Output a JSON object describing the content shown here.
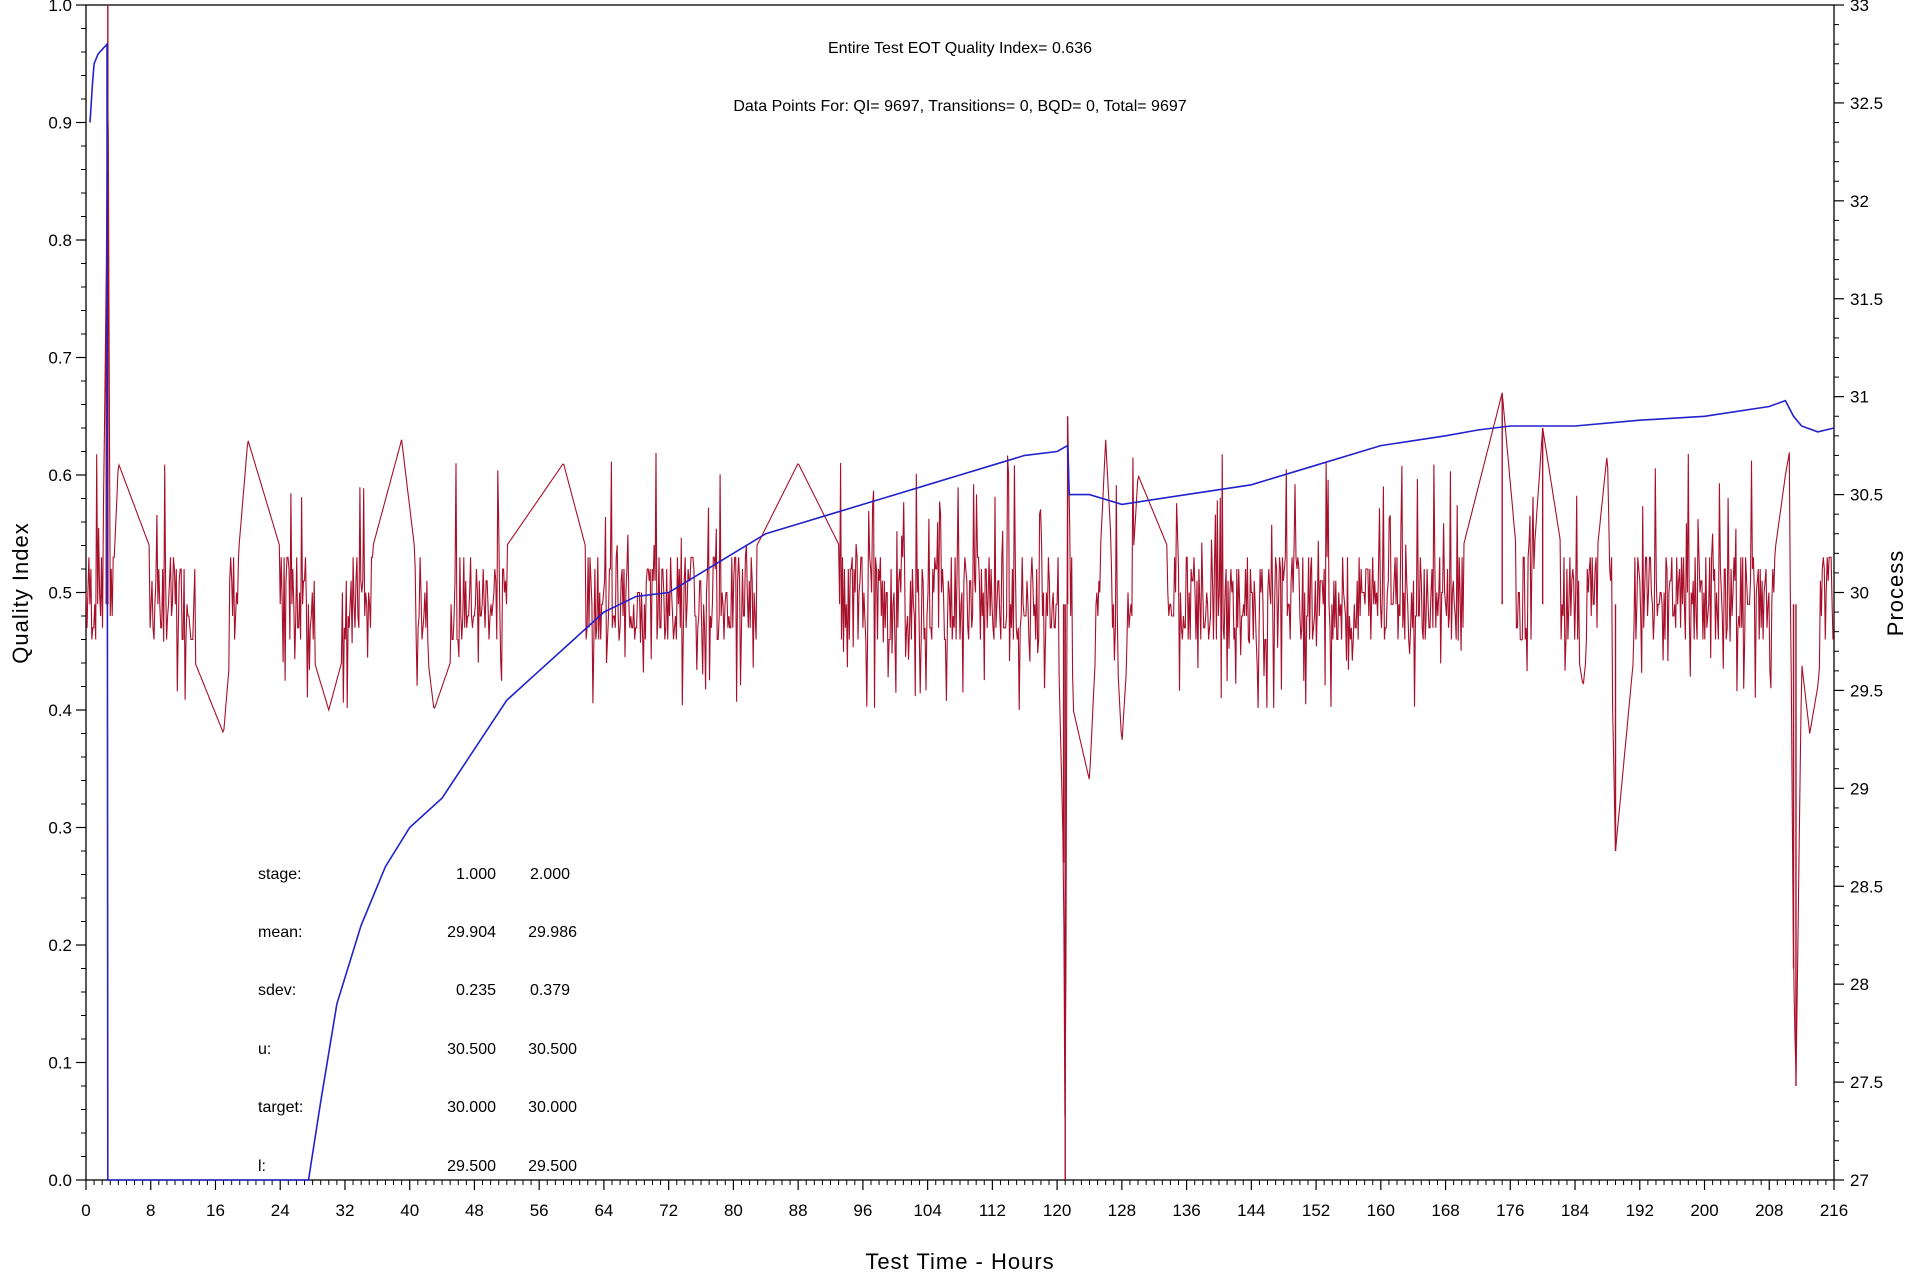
{
  "chart_data": {
    "type": "line",
    "header": {
      "line1": "Entire Test EOT Quality Index=   0.636",
      "line2": "Data Points For: QI=  9697, Transitions=     0, BQD=     0, Total=  9697"
    },
    "xlabel": "Test Time - Hours",
    "ylabel_left": "Quality Index",
    "ylabel_right": "Process",
    "xlim": [
      0,
      216
    ],
    "ylim_left": [
      0,
      1
    ],
    "ylim_right": [
      27,
      33
    ],
    "x_ticks": [
      "0",
      "8",
      "16",
      "24",
      "32",
      "40",
      "48",
      "56",
      "64",
      "72",
      "80",
      "88",
      "96",
      "104",
      "112",
      "120",
      "128",
      "136",
      "144",
      "152",
      "160",
      "168",
      "176",
      "184",
      "192",
      "200",
      "208",
      "216"
    ],
    "y_left_ticks": [
      "0.0",
      "0.1",
      "0.2",
      "0.3",
      "0.4",
      "0.5",
      "0.6",
      "0.7",
      "0.8",
      "0.9",
      "1.0"
    ],
    "y_right_ticks": [
      "27",
      "27.5",
      "28",
      "28.5",
      "29",
      "29.5",
      "30",
      "30.5",
      "31",
      "31.5",
      "32",
      "32.5",
      "33"
    ],
    "grid": false,
    "colors": {
      "quality_index": "#a80f2a",
      "process": "#2222cc"
    },
    "series": [
      {
        "axis": "left",
        "summary": "Quality Index oscillates about 0.48-0.50 between roughly 0.40 and 0.64 for the whole test; spike to 1.0 near 2.7 h, dips to 0.0 near 121 h, excursions 0.35-0.65 around 122-130 h, dip to 0.28 near 189 h, rise to 0.62 near 210-211 h then drop to 0.08 near 211.5 h.",
        "points": [
          [
            0,
            0.5
          ],
          [
            2.0,
            0.49
          ],
          [
            2.5,
            0.76
          ],
          [
            2.7,
            1.0
          ],
          [
            3.0,
            0.45
          ],
          [
            4.0,
            0.61
          ],
          [
            10,
            0.5
          ],
          [
            17,
            0.38
          ],
          [
            20,
            0.63
          ],
          [
            30,
            0.4
          ],
          [
            39,
            0.63
          ],
          [
            43,
            0.4
          ],
          [
            48,
            0.5
          ],
          [
            59,
            0.61
          ],
          [
            64,
            0.48
          ],
          [
            72,
            0.46
          ],
          [
            80,
            0.5
          ],
          [
            88,
            0.61
          ],
          [
            96,
            0.5
          ],
          [
            104,
            0.5
          ],
          [
            112,
            0.5
          ],
          [
            120,
            0.5
          ],
          [
            120.8,
            0.27
          ],
          [
            121,
            0.0
          ],
          [
            121.3,
            0.65
          ],
          [
            122,
            0.4
          ],
          [
            124,
            0.34
          ],
          [
            126,
            0.63
          ],
          [
            128,
            0.37
          ],
          [
            130,
            0.6
          ],
          [
            136,
            0.5
          ],
          [
            144,
            0.52
          ],
          [
            152,
            0.46
          ],
          [
            160,
            0.52
          ],
          [
            168,
            0.48
          ],
          [
            175,
            0.67
          ],
          [
            178,
            0.44
          ],
          [
            180,
            0.64
          ],
          [
            185,
            0.42
          ],
          [
            188,
            0.62
          ],
          [
            189,
            0.28
          ],
          [
            192,
            0.5
          ],
          [
            200,
            0.52
          ],
          [
            208,
            0.5
          ],
          [
            210,
            0.6
          ],
          [
            210.5,
            0.62
          ],
          [
            211,
            0.18
          ],
          [
            211.3,
            0.08
          ],
          [
            212,
            0.44
          ],
          [
            213,
            0.38
          ],
          [
            214,
            0.42
          ],
          [
            215,
            0.5
          ],
          [
            216,
            0.48
          ]
        ]
      },
      {
        "axis": "right",
        "summary": "Process value rises from ~27 at 27.5 h through ~29.5 at 55 h, ~30 at 75 h, ~30.7 at 121 h, steps down to 30.4 at 121.5 h, then climbs to ~30.9 at 210 h and falls to ~30.8 at 216 h. Early segment near 0-3 h sits at 32.4-32.8 with a drop to 27 at 2.7 h.",
        "points": [
          [
            0.5,
            32.4
          ],
          [
            0.8,
            32.6
          ],
          [
            1.0,
            32.7
          ],
          [
            1.5,
            32.75
          ],
          [
            2.6,
            32.8
          ],
          [
            2.7,
            27.0
          ],
          [
            27.5,
            27.0
          ],
          [
            29,
            27.4
          ],
          [
            31,
            27.9
          ],
          [
            34,
            28.3
          ],
          [
            37,
            28.6
          ],
          [
            40,
            28.8
          ],
          [
            44,
            28.95
          ],
          [
            48,
            29.2
          ],
          [
            52,
            29.45
          ],
          [
            56,
            29.6
          ],
          [
            60,
            29.75
          ],
          [
            64,
            29.9
          ],
          [
            68,
            29.98
          ],
          [
            72,
            30.0
          ],
          [
            76,
            30.1
          ],
          [
            80,
            30.2
          ],
          [
            84,
            30.3
          ],
          [
            88,
            30.35
          ],
          [
            92,
            30.4
          ],
          [
            96,
            30.45
          ],
          [
            100,
            30.5
          ],
          [
            104,
            30.55
          ],
          [
            108,
            30.6
          ],
          [
            112,
            30.65
          ],
          [
            116,
            30.7
          ],
          [
            120,
            30.72
          ],
          [
            121.3,
            30.75
          ],
          [
            121.5,
            30.5
          ],
          [
            124,
            30.5
          ],
          [
            128,
            30.45
          ],
          [
            136,
            30.5
          ],
          [
            144,
            30.55
          ],
          [
            152,
            30.65
          ],
          [
            160,
            30.75
          ],
          [
            168,
            30.8
          ],
          [
            172,
            30.83
          ],
          [
            176,
            30.85
          ],
          [
            184,
            30.85
          ],
          [
            192,
            30.88
          ],
          [
            200,
            30.9
          ],
          [
            208,
            30.95
          ],
          [
            210,
            30.98
          ],
          [
            211,
            30.9
          ],
          [
            212,
            30.85
          ],
          [
            214,
            30.82
          ],
          [
            216,
            30.84
          ]
        ]
      }
    ],
    "stats_table": {
      "stage": {
        "label": "stage:",
        "v1": "1.000",
        "v2": "2.000"
      },
      "mean": {
        "label": "mean:",
        "v1": "29.904",
        "v2": "29.986"
      },
      "sdev": {
        "label": "sdev:",
        "v1": "0.235",
        "v2": "0.379"
      },
      "u": {
        "label": "u:",
        "v1": "30.500",
        "v2": "30.500"
      },
      "target": {
        "label": "target:",
        "v1": "30.000",
        "v2": "30.000"
      },
      "l": {
        "label": "l:",
        "v1": "29.500",
        "v2": "29.500"
      }
    }
  }
}
